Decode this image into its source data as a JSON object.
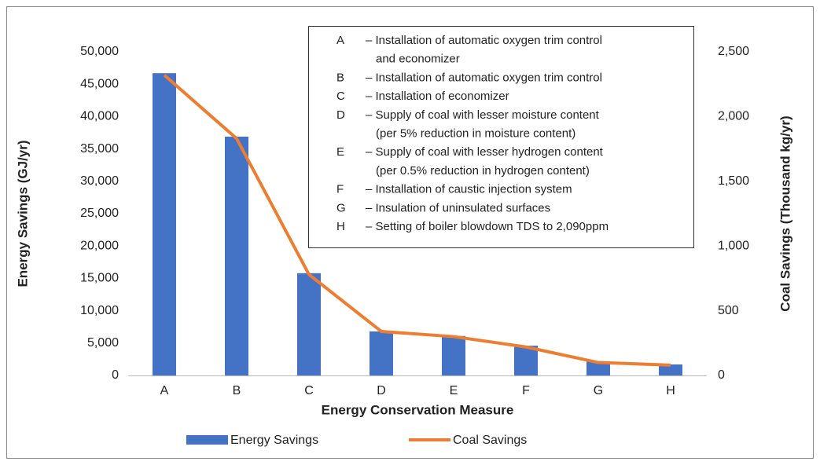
{
  "chart_data": {
    "type": "combo",
    "xlabel": "Energy Conservation Measure",
    "ylabel": "Energy Savings (GJ/yr)",
    "y2label": "Coal Savings (Thousand kg/yr)",
    "categories": [
      "A",
      "B",
      "C",
      "D",
      "E",
      "F",
      "G",
      "H"
    ],
    "series": [
      {
        "name": "Energy Savings",
        "type": "bar",
        "color": "#4472c4",
        "values": [
          46700,
          36900,
          15800,
          6800,
          6100,
          4600,
          2200,
          1700
        ]
      },
      {
        "name": "Coal Savings",
        "type": "line",
        "axis": "y2",
        "color": "#ed7d31",
        "values": [
          2320,
          1830,
          780,
          340,
          300,
          220,
          100,
          80
        ]
      }
    ],
    "ylim": [
      0,
      50000
    ],
    "yticks": [
      0,
      {
        "value": 5000,
        "label": "5,000"
      },
      {
        "value": 10000,
        "label": "10,000"
      },
      {
        "value": 15000,
        "label": "15,000"
      },
      {
        "value": 20000,
        "label": "20,000"
      },
      {
        "value": 25000,
        "label": "25,000"
      },
      {
        "value": 30000,
        "label": "30,000"
      },
      {
        "value": 35000,
        "label": "35,000"
      },
      {
        "value": 40000,
        "label": "40,000"
      },
      {
        "value": 45000,
        "label": "45,000"
      },
      {
        "value": 50000,
        "label": "50,000"
      }
    ],
    "y2lim": [
      0,
      2500
    ],
    "y2ticks": [
      0,
      500,
      {
        "value": 1000,
        "label": "1,000"
      },
      {
        "value": 1500,
        "label": "1,500"
      },
      {
        "value": 2000,
        "label": "2,000"
      },
      {
        "value": 2500,
        "label": "2,500"
      }
    ],
    "legend": "bottom",
    "annotations": [
      {
        "key": "A",
        "lines": [
          "– Installation of automatic oxygen trim control",
          "and economizer"
        ]
      },
      {
        "key": "B",
        "lines": [
          "– Installation of automatic oxygen trim control"
        ]
      },
      {
        "key": "C",
        "lines": [
          "– Installation of economizer"
        ]
      },
      {
        "key": "D",
        "lines": [
          "– Supply of coal with lesser moisture content",
          "(per 5% reduction in moisture content)"
        ]
      },
      {
        "key": "E",
        "lines": [
          "– Supply of coal with lesser hydrogen content",
          "(per 0.5% reduction in hydrogen content)"
        ]
      },
      {
        "key": "F",
        "lines": [
          "– Installation of caustic injection system"
        ]
      },
      {
        "key": "G",
        "lines": [
          "– Insulation of uninsulated surfaces"
        ]
      },
      {
        "key": "H",
        "lines": [
          "– Setting of boiler blowdown TDS to 2,090ppm"
        ]
      }
    ]
  }
}
